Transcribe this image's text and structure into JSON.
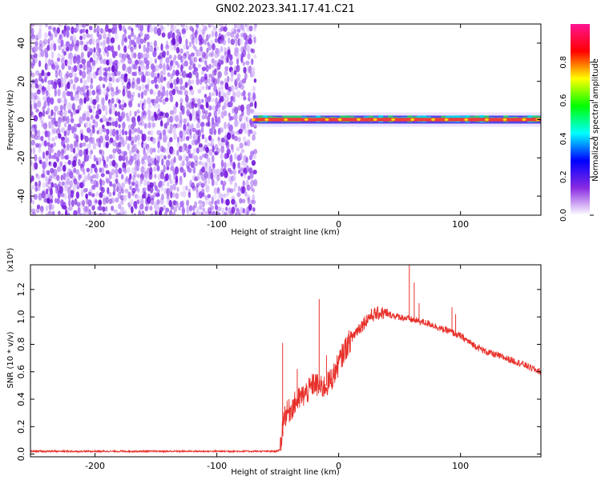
{
  "title": "GN02.2023.341.17.41.C21",
  "chart_data": [
    {
      "type": "heatmap",
      "xlabel": "Height of straight line (km)",
      "ylabel": "Frequency (Hz)",
      "xlim": [
        -253,
        166
      ],
      "ylim": [
        -50,
        50
      ],
      "x_ticks": [
        -200,
        -100,
        0,
        100
      ],
      "x_tick_labels": [
        "-200",
        "-100",
        "0",
        "100"
      ],
      "y_ticks": [
        -40,
        -20,
        0,
        20,
        40
      ],
      "y_tick_labels": [
        "-40",
        "-20",
        "0",
        "20",
        "40"
      ],
      "noise_region_x": [
        -253,
        -70
      ],
      "signal_band": {
        "x_start": -70,
        "x_end": 166,
        "frequency_hz": 0
      },
      "colorbar": {
        "label": "Normalized spectral amplitude",
        "range": [
          0.0,
          1.0
        ],
        "ticks": [
          0.0,
          0.2,
          0.4,
          0.6,
          0.8
        ],
        "tick_labels": [
          "0.0",
          "0.2",
          "0.4",
          "0.6",
          "0.8"
        ],
        "colormap": [
          "#ffffff",
          "#8a2be2",
          "#0000ff",
          "#00ffff",
          "#00ff00",
          "#ffff00",
          "#ff0000",
          "#ff1493"
        ]
      }
    },
    {
      "type": "line",
      "xlabel": "Height of straight line (km)",
      "ylabel": "SNR (10 * v/v)",
      "y_multiplier": "(x10⁴)",
      "xlim": [
        -253,
        166
      ],
      "ylim": [
        -0.02,
        1.38
      ],
      "x_ticks": [
        -200,
        -100,
        0,
        100
      ],
      "x_tick_labels": [
        "-200",
        "-100",
        "0",
        "100"
      ],
      "y_ticks": [
        0.0,
        0.2,
        0.4,
        0.6,
        0.8,
        1.0,
        1.2
      ],
      "y_tick_labels": [
        "0.0",
        "0.2",
        "0.4",
        "0.6",
        "0.8",
        "1.0",
        "1.2"
      ],
      "series": [
        {
          "color": "#e8302a",
          "x": [
            -253,
            -200,
            -150,
            -100,
            -60,
            -52,
            -48,
            -45,
            -40,
            -35,
            -30,
            -25,
            -20,
            -15,
            -10,
            -5,
            0,
            5,
            10,
            15,
            20,
            25,
            30,
            35,
            40,
            45,
            50,
            55,
            60,
            65,
            70,
            75,
            80,
            85,
            90,
            95,
            100,
            110,
            120,
            130,
            140,
            150,
            160,
            166
          ],
          "values": [
            0.02,
            0.02,
            0.02,
            0.02,
            0.02,
            0.02,
            0.03,
            0.28,
            0.32,
            0.38,
            0.42,
            0.46,
            0.52,
            0.48,
            0.5,
            0.56,
            0.66,
            0.76,
            0.84,
            0.9,
            0.95,
            1.0,
            1.02,
            1.03,
            1.02,
            1.01,
            1.0,
            0.99,
            0.98,
            0.97,
            0.96,
            0.95,
            0.93,
            0.91,
            0.9,
            0.88,
            0.86,
            0.8,
            0.75,
            0.72,
            0.69,
            0.66,
            0.62,
            0.6
          ]
        }
      ],
      "spikes": [
        {
          "x": -46,
          "value": 0.81
        },
        {
          "x": -34,
          "value": 0.62
        },
        {
          "x": -16,
          "value": 1.13
        },
        {
          "x": -10,
          "value": 0.72
        },
        {
          "x": 58,
          "value": 1.38
        },
        {
          "x": 62,
          "value": 1.25
        },
        {
          "x": 66,
          "value": 1.1
        },
        {
          "x": 93,
          "value": 1.07
        },
        {
          "x": 96,
          "value": 1.02
        }
      ]
    }
  ]
}
